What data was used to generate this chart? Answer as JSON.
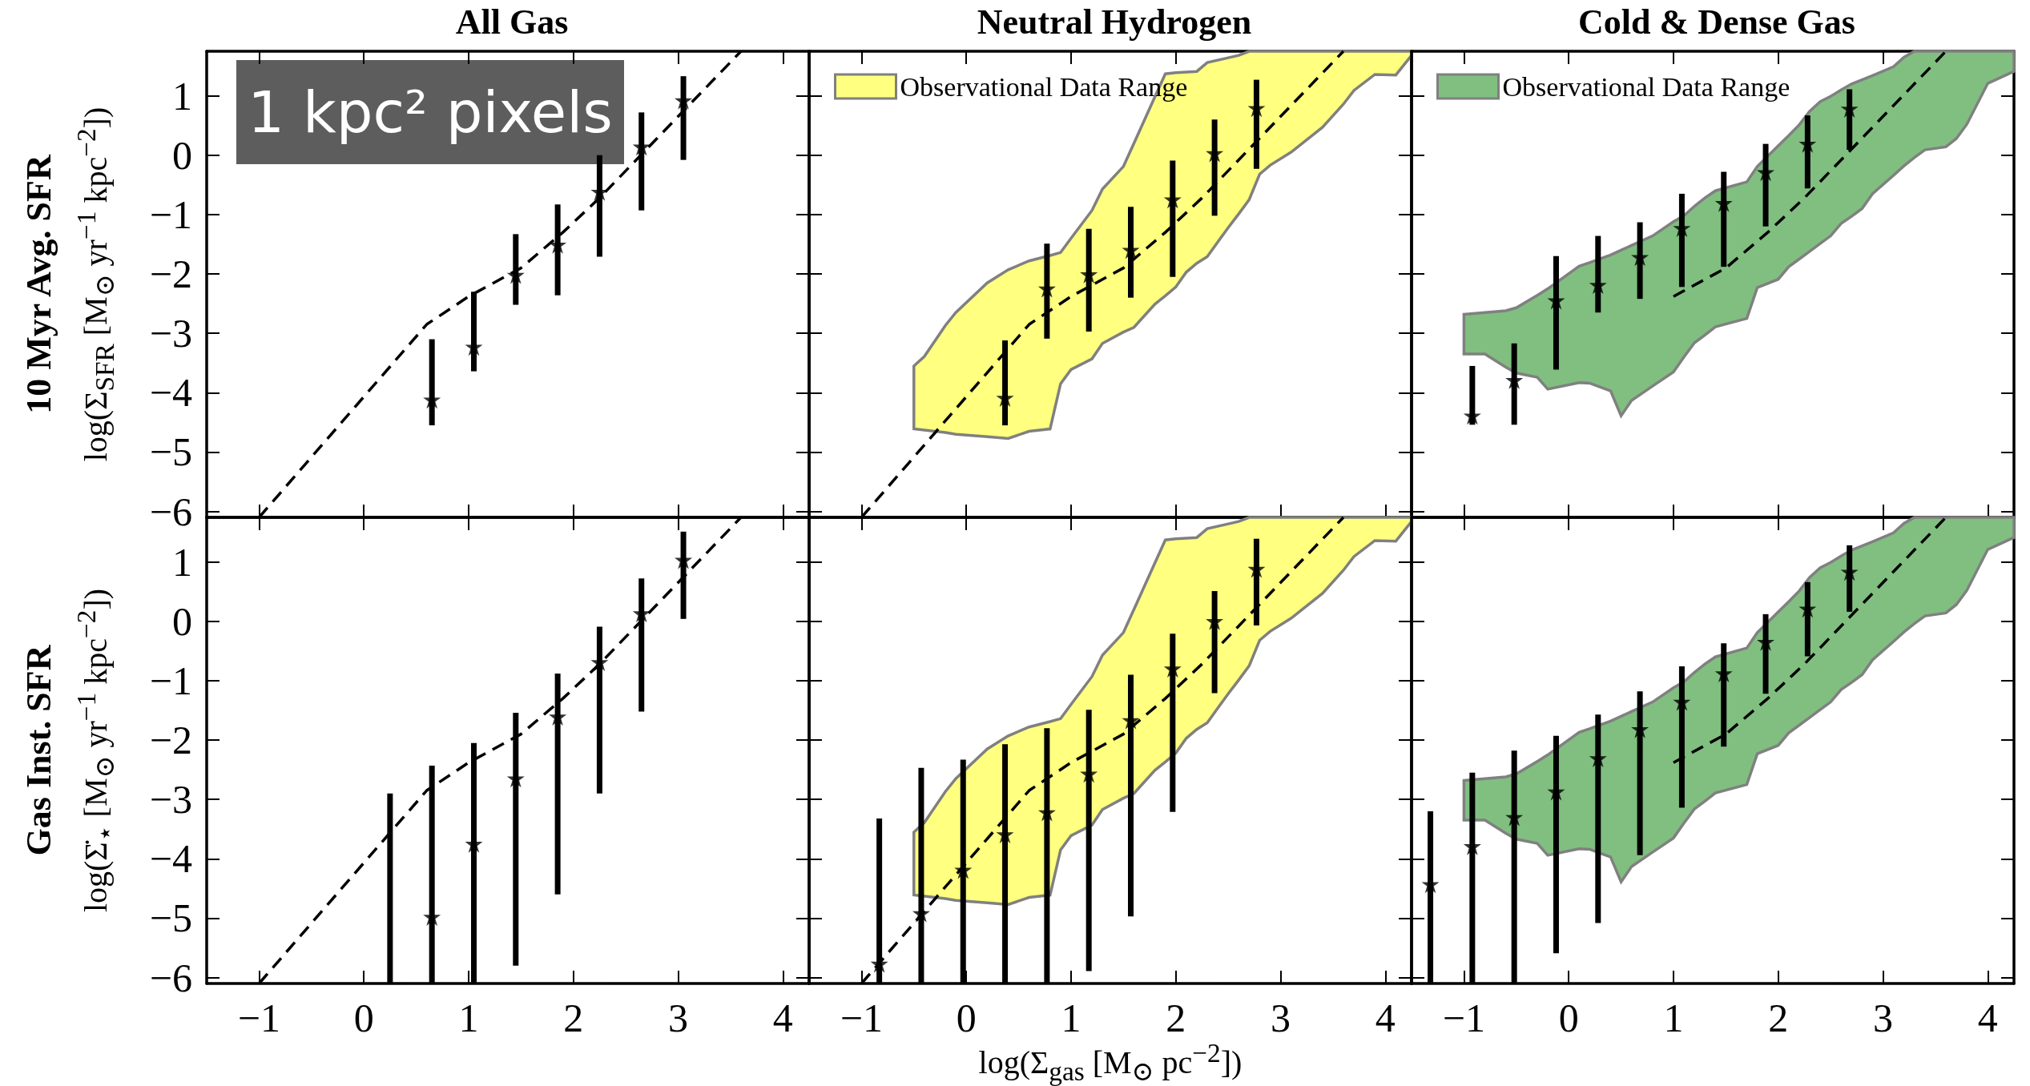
{
  "chart_data": [
    {
      "type": "scatter",
      "title": "All Gas",
      "ylabel": "log(Σ$_{SFR}$ [M$_{⊙}$ yr$^{−1}$ kpc$^{−2}$])",
      "annotations": [
        "10 Myr Avg. SFR",
        "1 kpc² pixels"
      ],
      "xlim": [
        -1.5,
        4.25
      ],
      "xticks": [
        -1,
        0,
        1,
        2,
        3,
        4
      ],
      "ylim": [
        -6.1,
        1.75
      ],
      "yticks": [
        -6,
        -5,
        -4,
        -3,
        -2,
        -1,
        0,
        1
      ],
      "tick_labels": "y",
      "grid": false,
      "marker": "star",
      "series": [
        {
          "type": "line",
          "color": "#000000",
          "line_style": "dashed",
          "marker": "none",
          "x": [
            -1,
            0.6,
            1.0,
            1.5,
            1.9,
            2.25,
            3.6
          ],
          "values": [
            -6.1,
            -2.85,
            -2.38,
            -1.9,
            -1.3,
            -0.72,
            1.75
          ]
        },
        {
          "type": "scatter",
          "color": "#000000",
          "x": [
            0.65,
            1.05,
            1.45,
            1.85,
            2.25,
            2.65,
            3.05
          ],
          "values": [
            -4.12,
            -3.23,
            -2.02,
            -1.51,
            -0.62,
            0.14,
            0.92
          ],
          "errors": [
            [
              -4.55,
              -3.1
            ],
            [
              -3.64,
              -2.3
            ],
            [
              -2.52,
              -1.33
            ],
            [
              -2.36,
              -0.83
            ],
            [
              -1.71,
              0.0
            ],
            [
              -0.93,
              0.72
            ],
            [
              -0.08,
              1.33
            ]
          ]
        }
      ]
    },
    {
      "type": "scatter",
      "title": "Neutral Hydrogen",
      "xlim": [
        -1.5,
        4.25
      ],
      "xticks": [
        -1,
        0,
        1,
        2,
        3,
        4
      ],
      "ylim": [
        -6.1,
        1.75
      ],
      "yticks": [
        -6,
        -5,
        -4,
        -3,
        -2,
        -1,
        0,
        1
      ],
      "tick_labels": false,
      "grid": false,
      "legend": "top left",
      "marker": "star",
      "series": [
        {
          "type": "area",
          "name": "Observational Data Range",
          "color": "#ffff80",
          "marker": "none",
          "x": [
            -0.5,
            -0.4,
            -0.2,
            -0.1,
            0.2,
            0.4,
            0.6,
            0.8,
            0.9,
            1.0,
            1.2,
            1.3,
            1.5,
            1.6,
            1.8,
            1.9,
            2.0,
            2.1,
            2.2,
            2.3,
            2.5,
            2.6,
            2.7,
            2.8,
            2.9,
            3.1,
            3.4,
            3.6,
            3.7,
            3.9,
            4.1,
            4.25
          ],
          "values": [
            null,
            null,
            null,
            null,
            null,
            null,
            null,
            null,
            null,
            null,
            null,
            null,
            null,
            null,
            null,
            null,
            null,
            null,
            null,
            null,
            null,
            null,
            null,
            null,
            null,
            null,
            null,
            null,
            null,
            null,
            null,
            null
          ],
          "upper": [
            -3.55,
            -3.39,
            -2.87,
            -2.65,
            -2.15,
            -1.93,
            -1.78,
            -1.69,
            -1.64,
            -1.4,
            -0.93,
            -0.57,
            -0.19,
            0.2,
            0.98,
            1.37,
            1.39,
            1.4,
            1.41,
            1.56,
            1.64,
            1.68,
            1.75,
            1.75,
            1.75,
            1.75,
            1.75,
            1.75,
            1.75,
            1.75,
            1.75,
            1.75
          ],
          "lower": [
            -4.61,
            -4.63,
            -4.67,
            -4.7,
            -4.74,
            -4.77,
            -4.65,
            -4.61,
            -3.85,
            -3.61,
            -3.43,
            -3.17,
            -2.98,
            -2.9,
            -2.51,
            -2.37,
            -2.22,
            -1.97,
            -1.82,
            -1.71,
            -1.22,
            -0.99,
            -0.75,
            -0.32,
            -0.17,
            0.05,
            0.47,
            0.86,
            1.09,
            1.36,
            1.35,
            1.68
          ]
        },
        {
          "type": "line",
          "color": "#000000",
          "line_style": "dashed",
          "marker": "none",
          "x": [
            -1,
            0.6,
            1.0,
            1.5,
            1.9,
            2.25,
            3.6
          ],
          "values": [
            -6.1,
            -2.85,
            -2.38,
            -1.9,
            -1.3,
            -0.72,
            1.75
          ]
        },
        {
          "type": "scatter",
          "color": "#000000",
          "x": [
            0.37,
            0.77,
            1.17,
            1.57,
            1.97,
            2.37,
            2.77
          ],
          "values": [
            -4.09,
            -2.25,
            -2.01,
            -1.6,
            -0.75,
            0.03,
            0.79
          ],
          "errors": [
            [
              -4.55,
              -3.12
            ],
            [
              -3.09,
              -1.49
            ],
            [
              -2.97,
              -1.24
            ],
            [
              -2.4,
              -0.87
            ],
            [
              -2.05,
              -0.09
            ],
            [
              -1.02,
              0.6
            ],
            [
              -0.23,
              1.27
            ]
          ]
        }
      ]
    },
    {
      "type": "scatter",
      "title": "Cold & Dense Gas",
      "xlim": [
        -1.5,
        4.25
      ],
      "xticks": [
        -1,
        0,
        1,
        2,
        3,
        4
      ],
      "ylim": [
        -6.1,
        1.75
      ],
      "yticks": [
        -6,
        -5,
        -4,
        -3,
        -2,
        -1,
        0,
        1
      ],
      "tick_labels": false,
      "grid": false,
      "legend": "top left",
      "marker": "star",
      "series": [
        {
          "type": "area",
          "name": "Observational Data Range",
          "color": "#80bf80",
          "marker": "none",
          "x": [
            -1.0,
            -0.8,
            -0.6,
            -0.5,
            -0.3,
            -0.2,
            0.1,
            0.2,
            0.4,
            0.5,
            0.6,
            0.8,
            1.0,
            1.1,
            1.2,
            1.3,
            1.4,
            1.7,
            1.8,
            2.0,
            2.1,
            2.2,
            2.3,
            2.4,
            2.5,
            2.6,
            2.7,
            2.8,
            2.9,
            3.1,
            3.2,
            3.3,
            3.4,
            3.6,
            3.7,
            3.8,
            4.0,
            4.25
          ],
          "values": [
            null,
            null,
            null,
            null,
            null,
            null,
            null,
            null,
            null,
            null,
            null,
            null,
            null,
            null,
            null,
            null,
            null,
            null,
            null,
            null,
            null,
            null,
            null,
            null,
            null,
            null,
            null,
            null,
            null,
            null,
            null,
            null,
            null,
            null,
            null,
            null,
            null,
            null
          ],
          "upper": [
            -2.68,
            -2.65,
            -2.62,
            -2.57,
            -2.36,
            -2.25,
            -1.87,
            -1.81,
            -1.68,
            -1.6,
            -1.52,
            -1.36,
            -1.12,
            -1.02,
            -0.86,
            -0.72,
            -0.6,
            -0.45,
            -0.19,
            0.16,
            0.33,
            0.51,
            0.74,
            0.9,
            0.99,
            1.1,
            1.2,
            1.27,
            1.34,
            1.49,
            1.65,
            1.75,
            1.75,
            1.75,
            1.75,
            1.75,
            1.75,
            1.75
          ],
          "lower": [
            -3.35,
            -3.35,
            -3.57,
            -3.67,
            -3.74,
            -3.94,
            -3.83,
            -3.84,
            -3.97,
            -4.39,
            -4.13,
            -3.89,
            -3.65,
            -3.4,
            -3.16,
            -3.03,
            -2.89,
            -2.75,
            -2.23,
            -2.09,
            -1.88,
            -1.75,
            -1.62,
            -1.49,
            -1.36,
            -1.15,
            -1.03,
            -0.9,
            -0.65,
            -0.34,
            -0.18,
            -0.04,
            0.09,
            0.14,
            0.28,
            0.52,
            1.21,
            1.41
          ]
        },
        {
          "type": "line",
          "color": "#000000",
          "line_style": "dashed",
          "marker": "none",
          "x": [
            1.0,
            1.5,
            1.9,
            2.25,
            3.6
          ],
          "values": [
            -2.38,
            -1.9,
            -1.3,
            -0.72,
            1.75
          ]
        },
        {
          "type": "scatter",
          "color": "#000000",
          "x": [
            -0.92,
            -0.52,
            -0.12,
            0.28,
            0.68,
            1.08,
            1.48,
            1.88,
            2.28,
            2.68
          ],
          "values": [
            -4.39,
            -3.79,
            -2.45,
            -2.19,
            -1.72,
            -1.23,
            -0.81,
            -0.29,
            0.19,
            0.78
          ],
          "errors": [
            [
              -4.54,
              -3.55
            ],
            [
              -4.54,
              -3.17
            ],
            [
              -3.61,
              -1.7
            ],
            [
              -2.65,
              -1.36
            ],
            [
              -2.42,
              -1.13
            ],
            [
              -2.22,
              -0.65
            ],
            [
              -1.88,
              -0.28
            ],
            [
              -1.2,
              0.19
            ],
            [
              -0.56,
              0.67
            ],
            [
              0.09,
              1.11
            ]
          ]
        }
      ]
    },
    {
      "type": "scatter",
      "ylabel": "log(Σ̇$_{⋆}$ [M$_{⊙}$ yr$^{−1}$ kpc$^{−2}$])",
      "annotations": [
        "Gas Inst. SFR"
      ],
      "xlim": [
        -1.5,
        4.25
      ],
      "xticks": [
        -1,
        0,
        1,
        2,
        3,
        4
      ],
      "ylim": [
        -6.1,
        1.75
      ],
      "yticks": [
        -6,
        -5,
        -4,
        -3,
        -2,
        -1,
        0,
        1
      ],
      "grid": false,
      "marker": "star",
      "series": [
        {
          "type": "line",
          "color": "#000000",
          "line_style": "dashed",
          "marker": "none",
          "x": [
            -1,
            0.6,
            1.0,
            1.5,
            1.9,
            2.25,
            3.6
          ],
          "values": [
            -6.1,
            -2.85,
            -2.38,
            -1.9,
            -1.3,
            -0.72,
            1.75
          ]
        },
        {
          "type": "line",
          "color": "#000000",
          "line_style": "solid",
          "marker": "none",
          "x": [
            0.25,
            0.25
          ],
          "values": [
            -6.1,
            -2.9
          ]
        },
        {
          "type": "scatter",
          "color": "#000000",
          "x": [
            0.65,
            1.05,
            1.45,
            1.85,
            2.25,
            2.65,
            3.05
          ],
          "values": [
            -4.98,
            -3.75,
            -2.65,
            -1.61,
            -0.69,
            0.13,
            1.03
          ],
          "errors": [
            [
              -6.1,
              -2.43
            ],
            [
              -6.1,
              -2.05
            ],
            [
              -5.8,
              -1.54
            ],
            [
              -4.6,
              -0.88
            ],
            [
              -2.9,
              -0.09
            ],
            [
              -1.52,
              0.72
            ],
            [
              0.04,
              1.51
            ]
          ]
        }
      ]
    },
    {
      "type": "scatter",
      "xlabel": "log(Σ$_{gas}$ [M$_{⊙}$ pc$^{−2}$])",
      "xlim": [
        -1.5,
        4.25
      ],
      "xticks": [
        -1,
        0,
        1,
        2,
        3,
        4
      ],
      "ylim": [
        -6.1,
        1.75
      ],
      "yticks": [
        -6,
        -5,
        -4,
        -3,
        -2,
        -1,
        0,
        1
      ],
      "tick_labels": "x",
      "grid": false,
      "marker": "star",
      "series": [
        {
          "type": "area",
          "color": "#ffff80",
          "marker": "none",
          "x": [
            -0.5,
            -0.4,
            -0.2,
            -0.1,
            0.2,
            0.4,
            0.6,
            0.8,
            0.9,
            1.0,
            1.2,
            1.3,
            1.5,
            1.6,
            1.8,
            1.9,
            2.0,
            2.1,
            2.2,
            2.3,
            2.5,
            2.6,
            2.7,
            2.8,
            2.9,
            3.1,
            3.4,
            3.6,
            3.7,
            3.9,
            4.1,
            4.25
          ],
          "values": [
            null,
            null,
            null,
            null,
            null,
            null,
            null,
            null,
            null,
            null,
            null,
            null,
            null,
            null,
            null,
            null,
            null,
            null,
            null,
            null,
            null,
            null,
            null,
            null,
            null,
            null,
            null,
            null,
            null,
            null,
            null,
            null
          ],
          "upper": [
            -3.55,
            -3.39,
            -2.87,
            -2.65,
            -2.15,
            -1.93,
            -1.78,
            -1.69,
            -1.64,
            -1.4,
            -0.93,
            -0.57,
            -0.19,
            0.2,
            0.98,
            1.37,
            1.39,
            1.4,
            1.41,
            1.56,
            1.64,
            1.68,
            1.75,
            1.75,
            1.75,
            1.75,
            1.75,
            1.75,
            1.75,
            1.75,
            1.75,
            1.75
          ],
          "lower": [
            -4.61,
            -4.63,
            -4.67,
            -4.7,
            -4.74,
            -4.77,
            -4.65,
            -4.61,
            -3.85,
            -3.61,
            -3.43,
            -3.17,
            -2.98,
            -2.9,
            -2.51,
            -2.37,
            -2.22,
            -1.97,
            -1.82,
            -1.71,
            -1.22,
            -0.99,
            -0.75,
            -0.32,
            -0.17,
            0.05,
            0.47,
            0.86,
            1.09,
            1.36,
            1.35,
            1.68
          ]
        },
        {
          "type": "line",
          "color": "#000000",
          "line_style": "dashed",
          "marker": "none",
          "x": [
            -1,
            0.6,
            1.0,
            1.5,
            1.9,
            2.25,
            3.6
          ],
          "values": [
            -6.1,
            -2.85,
            -2.38,
            -1.9,
            -1.3,
            -0.72,
            1.75
          ]
        },
        {
          "type": "scatter",
          "color": "#000000",
          "x": [
            -0.83,
            -0.43,
            -0.03,
            0.37,
            0.77,
            1.17,
            1.57,
            1.97,
            2.37,
            2.77
          ],
          "values": [
            -5.77,
            -4.92,
            -4.19,
            -3.59,
            -3.22,
            -2.57,
            -1.67,
            -0.8,
            0.0,
            0.88
          ],
          "errors": [
            [
              -6.1,
              -3.32
            ],
            [
              -6.1,
              -2.47
            ],
            [
              -6.1,
              -2.33
            ],
            [
              -6.1,
              -2.07
            ],
            [
              -6.1,
              -1.8
            ],
            [
              -5.89,
              -1.49
            ],
            [
              -4.97,
              -0.9
            ],
            [
              -3.21,
              -0.21
            ],
            [
              -1.21,
              0.51
            ],
            [
              -0.07,
              1.39
            ]
          ]
        }
      ]
    },
    {
      "type": "scatter",
      "xlim": [
        -1.5,
        4.25
      ],
      "xticks": [
        -1,
        0,
        1,
        2,
        3,
        4
      ],
      "ylim": [
        -6.1,
        1.75
      ],
      "yticks": [
        -6,
        -5,
        -4,
        -3,
        -2,
        -1,
        0,
        1
      ],
      "tick_labels": "x",
      "grid": false,
      "marker": "star",
      "series": [
        {
          "type": "area",
          "color": "#80bf80",
          "marker": "none",
          "x": [
            -1.0,
            -0.8,
            -0.6,
            -0.5,
            -0.3,
            -0.2,
            0.1,
            0.2,
            0.4,
            0.5,
            0.6,
            0.8,
            1.0,
            1.1,
            1.2,
            1.3,
            1.4,
            1.7,
            1.8,
            2.0,
            2.1,
            2.2,
            2.3,
            2.4,
            2.5,
            2.6,
            2.7,
            2.8,
            2.9,
            3.1,
            3.2,
            3.3,
            3.4,
            3.6,
            3.7,
            3.8,
            4.0,
            4.25
          ],
          "values": [
            null,
            null,
            null,
            null,
            null,
            null,
            null,
            null,
            null,
            null,
            null,
            null,
            null,
            null,
            null,
            null,
            null,
            null,
            null,
            null,
            null,
            null,
            null,
            null,
            null,
            null,
            null,
            null,
            null,
            null,
            null,
            null,
            null,
            null,
            null,
            null,
            null,
            null
          ],
          "upper": [
            -2.68,
            -2.65,
            -2.62,
            -2.57,
            -2.36,
            -2.25,
            -1.87,
            -1.81,
            -1.68,
            -1.6,
            -1.52,
            -1.36,
            -1.12,
            -1.02,
            -0.86,
            -0.72,
            -0.6,
            -0.45,
            -0.19,
            0.16,
            0.33,
            0.51,
            0.74,
            0.9,
            0.99,
            1.1,
            1.2,
            1.27,
            1.34,
            1.49,
            1.65,
            1.75,
            1.75,
            1.75,
            1.75,
            1.75,
            1.75,
            1.75
          ],
          "lower": [
            -3.35,
            -3.35,
            -3.57,
            -3.67,
            -3.74,
            -3.94,
            -3.83,
            -3.84,
            -3.97,
            -4.39,
            -4.13,
            -3.89,
            -3.65,
            -3.4,
            -3.16,
            -3.03,
            -2.89,
            -2.75,
            -2.23,
            -2.09,
            -1.88,
            -1.75,
            -1.62,
            -1.49,
            -1.36,
            -1.15,
            -1.03,
            -0.9,
            -0.65,
            -0.34,
            -0.18,
            -0.04,
            0.09,
            0.14,
            0.28,
            0.52,
            1.21,
            1.41
          ]
        },
        {
          "type": "line",
          "color": "#000000",
          "line_style": "dashed",
          "marker": "none",
          "x": [
            1.0,
            1.5,
            1.9,
            2.25,
            3.6
          ],
          "values": [
            -2.38,
            -1.9,
            -1.3,
            -0.72,
            1.75
          ]
        },
        {
          "type": "scatter",
          "color": "#000000",
          "x": [
            -1.32,
            -0.92,
            -0.52,
            -0.12,
            0.28,
            0.68,
            1.08,
            1.48,
            1.88,
            2.28,
            2.68
          ],
          "values": [
            -4.43,
            -3.79,
            -3.3,
            -2.87,
            -2.31,
            -1.82,
            -1.36,
            -0.88,
            -0.35,
            0.21,
            0.83
          ],
          "errors": [
            [
              -6.1,
              -3.2
            ],
            [
              -6.1,
              -2.55
            ],
            [
              -6.1,
              -2.18
            ],
            [
              -5.59,
              -1.93
            ],
            [
              -5.08,
              -1.57
            ],
            [
              -3.94,
              -1.18
            ],
            [
              -3.14,
              -0.76
            ],
            [
              -2.11,
              -0.37
            ],
            [
              -1.22,
              0.12
            ],
            [
              -0.59,
              0.66
            ],
            [
              0.16,
              1.28
            ]
          ]
        }
      ]
    }
  ]
}
